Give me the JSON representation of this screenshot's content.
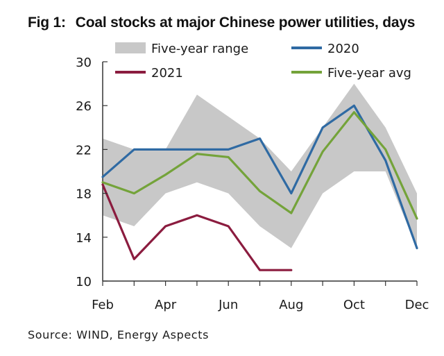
{
  "title": {
    "fig": "Fig 1:",
    "text": "Coal stocks at major Chinese power utilities, days"
  },
  "source": "Source: WIND, Energy Aspects",
  "chart_data": {
    "type": "line",
    "x": [
      "Feb",
      "Mar",
      "Apr",
      "May",
      "Jun",
      "Jul",
      "Aug",
      "Sep",
      "Oct",
      "Nov",
      "Dec"
    ],
    "x_tick_labels": [
      "Feb",
      "Apr",
      "Jun",
      "Aug",
      "Oct",
      "Dec"
    ],
    "y_ticks": [
      10,
      14,
      18,
      22,
      26,
      30
    ],
    "ylim": [
      10,
      30
    ],
    "grid": false,
    "legend_position": "top",
    "range": {
      "name": "Five-year range",
      "color": "#c8c8c8",
      "low": [
        16,
        15,
        18,
        19,
        18,
        15,
        13,
        18,
        20,
        20,
        13
      ],
      "high": [
        23,
        22,
        22,
        27,
        25,
        23,
        20,
        24,
        28,
        24,
        18
      ]
    },
    "series": [
      {
        "name": "2020",
        "color": "#2f6aa3",
        "values": [
          19.5,
          22,
          22,
          22,
          22,
          23,
          18,
          24,
          26,
          21,
          13
        ]
      },
      {
        "name": "2021",
        "color": "#8b1c3f",
        "values": [
          18.8,
          12,
          15,
          16,
          15,
          11,
          11,
          null,
          null,
          null,
          null
        ]
      },
      {
        "name": "Five-year avg",
        "color": "#74a33a",
        "values": [
          19,
          18,
          19.7,
          21.6,
          21.3,
          18.2,
          16.2,
          21.8,
          25.4,
          22,
          15.7
        ]
      }
    ]
  }
}
